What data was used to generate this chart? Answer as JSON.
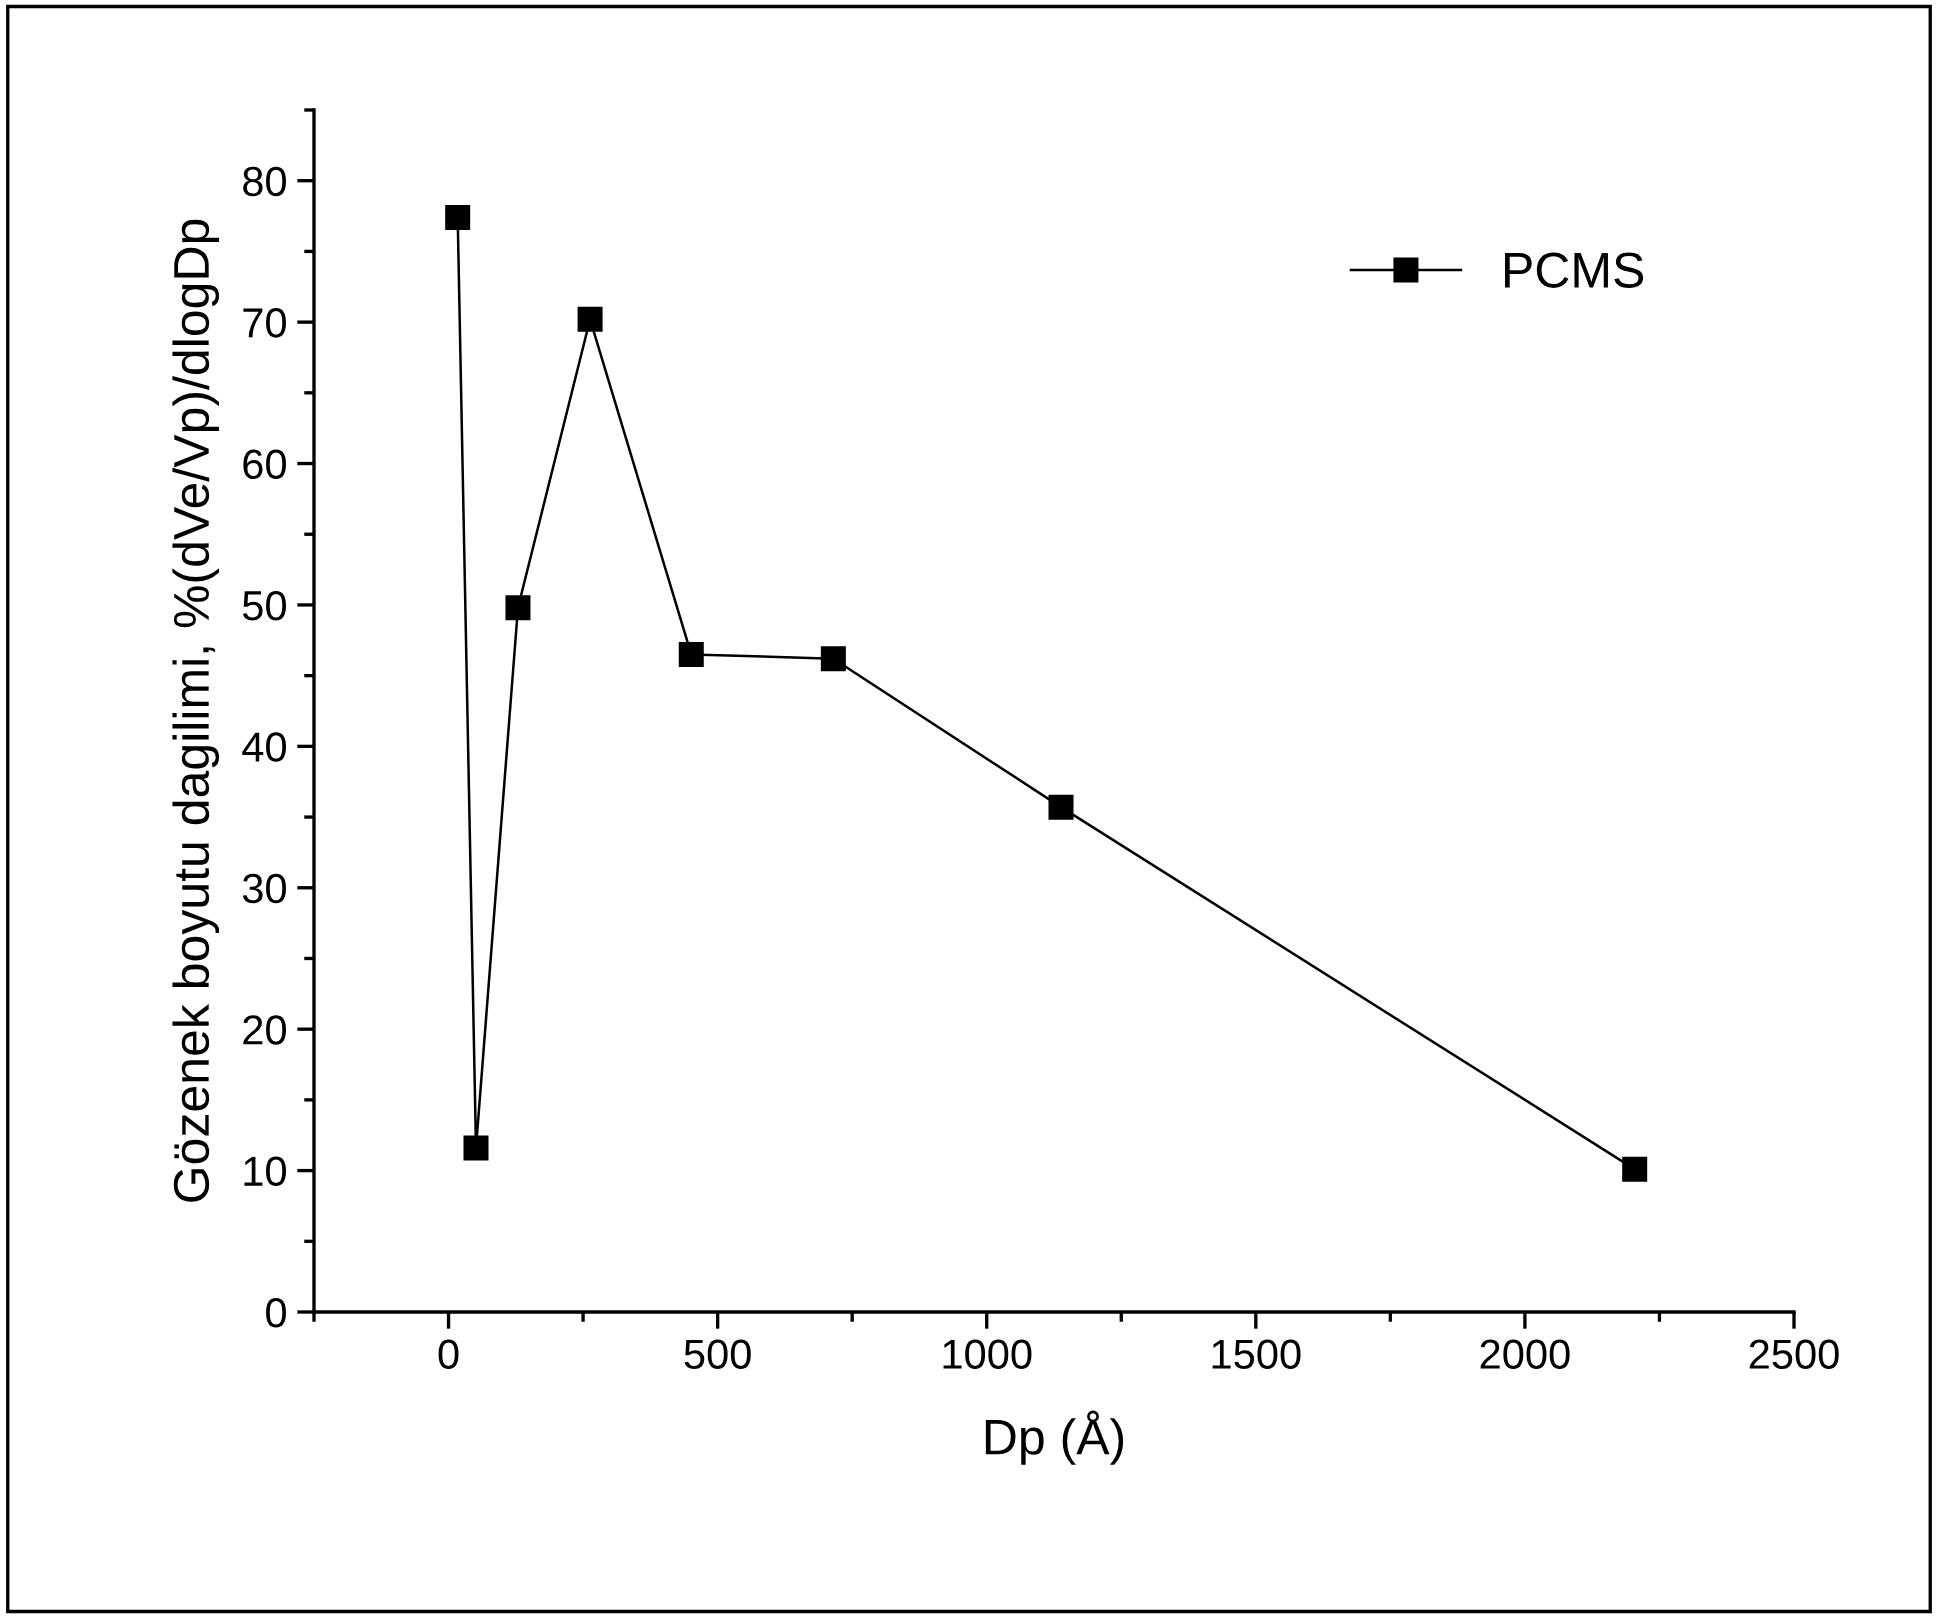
{
  "chart_data": {
    "type": "line",
    "xlabel": "Dp (Å)",
    "ylabel": "Gözenek boyutu dagilimi, %(dVe/Vp)/dlogDp",
    "x": [
      17,
      51,
      129,
      263,
      451,
      715,
      1138,
      2204
    ],
    "series": [
      {
        "name": "PCMS",
        "color": "#000000",
        "values": [
          77.4,
          11.6,
          49.8,
          70.2,
          46.5,
          46.2,
          35.7,
          10.1
        ]
      }
    ],
    "xlim": [
      -250,
      2500
    ],
    "xticks": [
      0,
      500,
      1000,
      1500,
      2000,
      2500
    ],
    "ylim": [
      0,
      85
    ],
    "yticks": [
      0,
      10,
      20,
      30,
      40,
      50,
      60,
      70,
      80
    ],
    "marker": "square",
    "line_style": "solid",
    "grid": false,
    "legend": "top right"
  }
}
